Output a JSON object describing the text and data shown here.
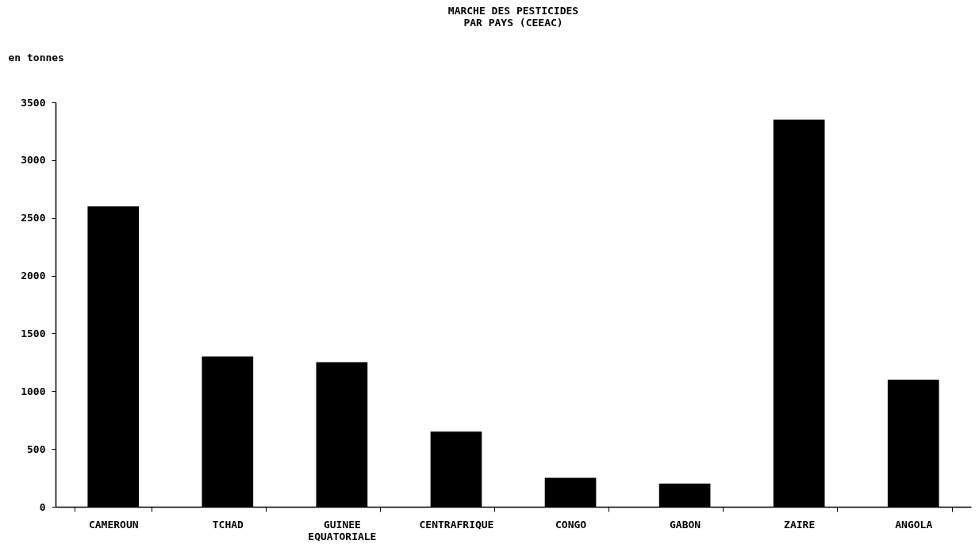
{
  "chart_data": {
    "type": "bar",
    "title": "MARCHE DES PESTICIDES\nPAR PAYS (CEEAC)",
    "ylabel": "en tonnes",
    "categories": [
      "CAMEROUN",
      "TCHAD",
      "GUINEE EQUATORIALE",
      "CENTRAFRIQUE",
      "CONGO",
      "GABON",
      "ZAIRE",
      "ANGOLA"
    ],
    "values": [
      2600,
      1300,
      1250,
      650,
      250,
      200,
      3350,
      1100
    ],
    "color": "#000000",
    "ylim": [
      0,
      3500
    ],
    "yticks": [
      0,
      500,
      1000,
      1500,
      2000,
      2500,
      3000,
      3500
    ],
    "grid": false
  }
}
